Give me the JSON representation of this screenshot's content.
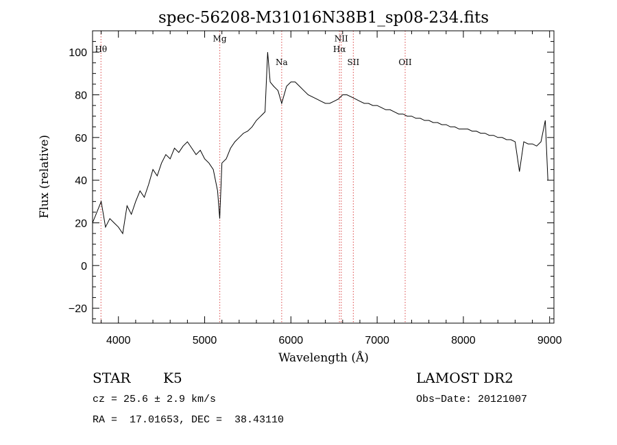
{
  "chart_data": {
    "type": "line",
    "title": "spec-56208-M31016N38B1_sp08-234.fits",
    "xlabel": "Wavelength (Å)",
    "ylabel": "Flux (relative)",
    "xlim": [
      3700,
      9050
    ],
    "ylim": [
      -27,
      110
    ],
    "xticks": [
      4000,
      5000,
      6000,
      7000,
      8000,
      9000
    ],
    "xtick_labels": [
      "4000",
      "5000",
      "6000",
      "7000",
      "8000",
      "9000"
    ],
    "yticks": [
      -20,
      0,
      20,
      40,
      60,
      80,
      100
    ],
    "ytick_labels": [
      "−20",
      "0",
      "20",
      "40",
      "60",
      "80",
      "100"
    ],
    "line_color": "#000000",
    "marker_color": "#e06060",
    "lines": [
      {
        "name": "Hθ",
        "wavelength": 3798,
        "label_y": 100
      },
      {
        "name": "Mg",
        "wavelength": 5175,
        "label_y": 105
      },
      {
        "name": "Na",
        "wavelength": 5893,
        "label_y": 94
      },
      {
        "name": "NII",
        "wavelength": 6584,
        "label_y": 105
      },
      {
        "name": "Hα",
        "wavelength": 6563,
        "label_y": 100
      },
      {
        "name": "SII",
        "wavelength": 6724,
        "label_y": 94
      },
      {
        "name": "OII",
        "wavelength": 7325,
        "label_y": 94
      }
    ],
    "series": [
      {
        "name": "spectrum",
        "x": [
          3700,
          3750,
          3800,
          3850,
          3900,
          3950,
          4000,
          4050,
          4100,
          4150,
          4200,
          4250,
          4300,
          4350,
          4400,
          4450,
          4500,
          4550,
          4600,
          4650,
          4700,
          4750,
          4800,
          4850,
          4900,
          4950,
          5000,
          5050,
          5100,
          5150,
          5175,
          5200,
          5250,
          5300,
          5350,
          5400,
          5450,
          5500,
          5550,
          5600,
          5650,
          5700,
          5730,
          5760,
          5800,
          5850,
          5893,
          5950,
          6000,
          6050,
          6100,
          6150,
          6200,
          6250,
          6300,
          6350,
          6400,
          6450,
          6500,
          6550,
          6600,
          6650,
          6700,
          6750,
          6800,
          6850,
          6900,
          6950,
          7000,
          7050,
          7100,
          7150,
          7200,
          7250,
          7300,
          7350,
          7400,
          7450,
          7500,
          7550,
          7600,
          7650,
          7700,
          7750,
          7800,
          7850,
          7900,
          7950,
          8000,
          8050,
          8100,
          8150,
          8200,
          8250,
          8300,
          8350,
          8400,
          8450,
          8500,
          8550,
          8600,
          8650,
          8700,
          8750,
          8800,
          8850,
          8900,
          8950,
          8980
        ],
        "y": [
          20,
          25,
          30,
          18,
          22,
          20,
          18,
          15,
          28,
          24,
          30,
          35,
          32,
          38,
          45,
          42,
          48,
          52,
          50,
          55,
          53,
          56,
          58,
          55,
          52,
          54,
          50,
          48,
          45,
          35,
          22,
          48,
          50,
          55,
          58,
          60,
          62,
          63,
          65,
          68,
          70,
          72,
          100,
          86,
          84,
          82,
          76,
          84,
          86,
          86,
          84,
          82,
          80,
          79,
          78,
          77,
          76,
          76,
          77,
          78,
          80,
          80,
          79,
          78,
          77,
          76,
          76,
          75,
          75,
          74,
          73,
          73,
          72,
          71,
          71,
          70,
          70,
          69,
          69,
          68,
          68,
          67,
          67,
          66,
          66,
          65,
          65,
          64,
          64,
          64,
          63,
          63,
          62,
          62,
          61,
          61,
          60,
          60,
          59,
          59,
          58,
          44,
          58,
          57,
          57,
          56,
          58,
          68,
          40
        ]
      }
    ]
  },
  "info": {
    "object_type": "STAR",
    "subclass": "K5",
    "survey": "LAMOST DR2",
    "cz": "cz = 25.6 ± 2.9 km/s",
    "obs_date": "Obs−Date: 20121007",
    "coords": "RA =  17.01653, DEC =  38.43110"
  }
}
